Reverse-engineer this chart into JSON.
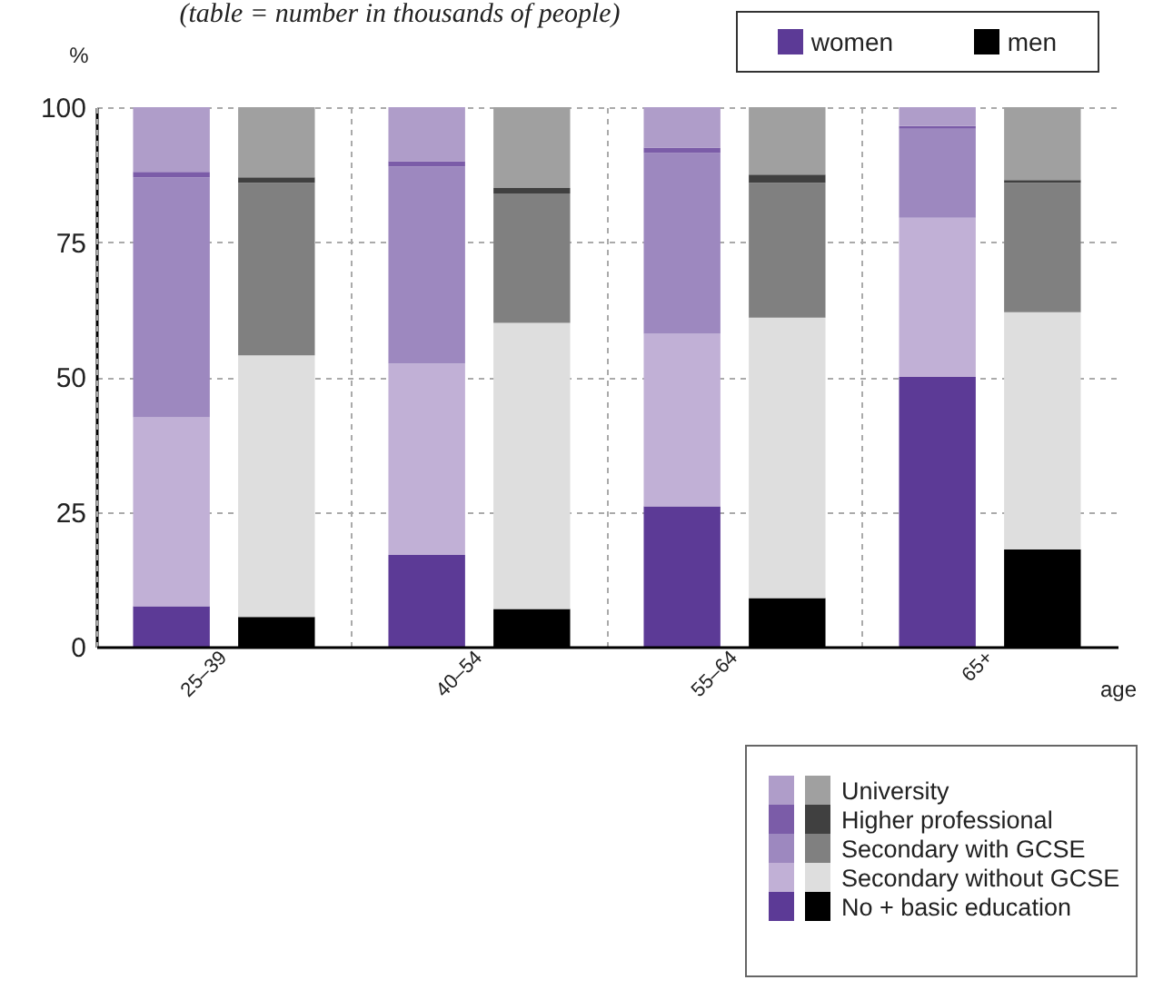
{
  "chart_data": {
    "type": "bar",
    "stacked": true,
    "subtitle": "(table = number in thousands of people)",
    "ylabel": "%",
    "xlabel": "age",
    "annotations": [
      "women",
      "men"
    ],
    "categories": [
      "25–39",
      null,
      "40–54",
      null,
      "55–64",
      null,
      "65+",
      null
    ],
    "ylim": [
      0,
      100
    ],
    "yticks": [
      0,
      25,
      50,
      75,
      100
    ],
    "grid": true,
    "legend": "bottom right",
    "series": [
      {
        "name": "No + basic education",
        "colors": [
          "#5c3a96",
          "#000000",
          "#5c3a96",
          "#000000",
          "#5c3a96",
          "#000000",
          "#5c3a96",
          "#000000"
        ],
        "values": [
          7.5,
          5.5,
          17,
          7,
          26,
          9,
          50,
          18
        ]
      },
      {
        "name": "Secondary without GCSE",
        "colors": [
          "#c1b0d6",
          "#dedede",
          "#c1b0d6",
          "#dedede",
          "#c1b0d6",
          "#dedede",
          "#c1b0d6",
          "#dedede"
        ],
        "values": [
          35,
          48.5,
          35.5,
          53,
          32,
          52,
          29.5,
          44
        ]
      },
      {
        "name": "Secondary with GCSE",
        "colors": [
          "#9d88bf",
          "#808080",
          "#9d88bf",
          "#808080",
          "#9d88bf",
          "#808080",
          "#9d88bf",
          "#808080"
        ],
        "values": [
          44.5,
          32,
          36.5,
          24,
          33.5,
          25,
          16.5,
          24
        ]
      },
      {
        "name": "Higher professional",
        "colors": [
          "#7b5ca8",
          "#404040",
          "#7b5ca8",
          "#404040",
          "#7b5ca8",
          "#404040",
          "#7b5ca8",
          "#404040"
        ],
        "values": [
          1,
          1,
          1,
          1,
          1,
          1.5,
          0.5,
          0.5
        ]
      },
      {
        "name": "University",
        "colors": [
          "#af9dc9",
          "#a0a0a0",
          "#af9dc9",
          "#a0a0a0",
          "#af9dc9",
          "#a0a0a0",
          "#af9dc9",
          "#a0a0a0"
        ],
        "values": [
          12,
          13,
          10,
          15,
          7.5,
          12.5,
          3.5,
          13.5
        ]
      }
    ]
  }
}
